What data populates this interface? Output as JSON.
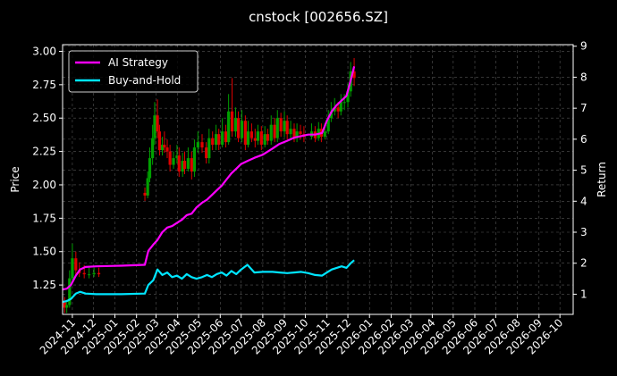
{
  "colors": {
    "background": "#000000",
    "frame": "#ffffff",
    "grid": "#555555",
    "candle_up": "#00a000",
    "candle_down": "#e00000",
    "ai_strategy": "#ff00ff",
    "buy_and_hold": "#00e5ff",
    "text": "#ffffff"
  },
  "chart_data": {
    "type": "line",
    "title": "cnstock [002656.SZ]",
    "ylabel": "Price",
    "y2label": "Return",
    "ylim": [
      1.03,
      3.05
    ],
    "y2lim": [
      0.35,
      9.05
    ],
    "xlim": [
      "2024-10-18",
      "2026-10-20"
    ],
    "yticks": [
      "1.25",
      "1.50",
      "1.75",
      "2.00",
      "2.25",
      "2.50",
      "2.75",
      "3.00"
    ],
    "y2ticks": [
      "1",
      "2",
      "3",
      "4",
      "5",
      "6",
      "7",
      "8",
      "9"
    ],
    "xticks": [
      "2024-11",
      "2024-12",
      "2025-01",
      "2025-02",
      "2025-03",
      "2025-04",
      "2025-05",
      "2025-06",
      "2025-07",
      "2025-08",
      "2025-09",
      "2025-10",
      "2025-11",
      "2025-12",
      "2026-01",
      "2026-02",
      "2026-03",
      "2026-04",
      "2026-05",
      "2026-06",
      "2026-07",
      "2026-08",
      "2026-09",
      "2026-10"
    ],
    "grid": true,
    "legend": {
      "position": "top-left"
    },
    "price_candles": {
      "name": "Price",
      "x": [
        "2024-10-21",
        "2024-10-24",
        "2024-10-28",
        "2024-11-01",
        "2024-11-06",
        "2024-11-11",
        "2024-11-18",
        "2024-11-25",
        "2024-12-02",
        "2024-12-09",
        "2025-02-13",
        "2025-02-17",
        "2025-02-20",
        "2025-02-24",
        "2025-02-27",
        "2025-03-03",
        "2025-03-06",
        "2025-03-10",
        "2025-03-13",
        "2025-03-17",
        "2025-03-21",
        "2025-03-26",
        "2025-03-31",
        "2025-04-03",
        "2025-04-08",
        "2025-04-11",
        "2025-04-16",
        "2025-04-21",
        "2025-04-25",
        "2025-04-30",
        "2025-05-06",
        "2025-05-12",
        "2025-05-16",
        "2025-05-21",
        "2025-05-26",
        "2025-05-30",
        "2025-06-04",
        "2025-06-09",
        "2025-06-13",
        "2025-06-18",
        "2025-06-23",
        "2025-06-27",
        "2025-07-02",
        "2025-07-07",
        "2025-07-11",
        "2025-07-16",
        "2025-07-21",
        "2025-07-25",
        "2025-07-30",
        "2025-08-04",
        "2025-08-08",
        "2025-08-13",
        "2025-08-18",
        "2025-08-22",
        "2025-08-27",
        "2025-09-01",
        "2025-09-05",
        "2025-09-10",
        "2025-09-15",
        "2025-09-19",
        "2025-09-24",
        "2025-09-29",
        "2025-10-10",
        "2025-10-15",
        "2025-10-20",
        "2025-10-24",
        "2025-10-29",
        "2025-11-03",
        "2025-11-07",
        "2025-11-12",
        "2025-11-17",
        "2025-11-21",
        "2025-11-26",
        "2025-12-01",
        "2025-12-05",
        "2025-12-10"
      ],
      "open": [
        1.12,
        1.08,
        1.1,
        1.3,
        1.45,
        1.36,
        1.34,
        1.33,
        1.33,
        1.34,
        1.94,
        1.92,
        2.05,
        2.2,
        2.35,
        2.52,
        2.4,
        2.26,
        2.3,
        2.28,
        2.25,
        2.15,
        2.2,
        2.22,
        2.1,
        2.18,
        2.12,
        2.2,
        2.1,
        2.28,
        2.32,
        2.28,
        2.2,
        2.35,
        2.3,
        2.38,
        2.3,
        2.4,
        2.32,
        2.55,
        2.4,
        2.5,
        2.35,
        2.48,
        2.3,
        2.4,
        2.35,
        2.33,
        2.4,
        2.3,
        2.38,
        2.33,
        2.45,
        2.35,
        2.5,
        2.4,
        2.48,
        2.38,
        2.42,
        2.35,
        2.4,
        2.38,
        2.36,
        2.4,
        2.35,
        2.42,
        2.36,
        2.4,
        2.5,
        2.55,
        2.58,
        2.55,
        2.62,
        2.62,
        2.7,
        2.85
      ],
      "close": [
        1.08,
        1.1,
        1.3,
        1.45,
        1.36,
        1.34,
        1.33,
        1.33,
        1.34,
        1.33,
        1.92,
        2.05,
        2.2,
        2.35,
        2.52,
        2.4,
        2.26,
        2.3,
        2.28,
        2.25,
        2.15,
        2.2,
        2.22,
        2.1,
        2.18,
        2.12,
        2.2,
        2.1,
        2.28,
        2.32,
        2.28,
        2.2,
        2.35,
        2.3,
        2.38,
        2.3,
        2.4,
        2.32,
        2.55,
        2.4,
        2.5,
        2.35,
        2.48,
        2.3,
        2.4,
        2.35,
        2.33,
        2.4,
        2.3,
        2.38,
        2.33,
        2.45,
        2.35,
        2.5,
        2.4,
        2.48,
        2.38,
        2.42,
        2.35,
        2.4,
        2.38,
        2.36,
        2.4,
        2.35,
        2.42,
        2.36,
        2.4,
        2.5,
        2.55,
        2.58,
        2.55,
        2.62,
        2.62,
        2.7,
        2.85,
        2.8
      ],
      "high": [
        1.16,
        1.14,
        1.36,
        1.56,
        1.5,
        1.42,
        1.4,
        1.38,
        1.38,
        1.38,
        1.98,
        2.1,
        2.28,
        2.45,
        2.62,
        2.64,
        2.45,
        2.36,
        2.4,
        2.34,
        2.3,
        2.25,
        2.3,
        2.28,
        2.24,
        2.25,
        2.28,
        2.25,
        2.34,
        2.4,
        2.38,
        2.32,
        2.42,
        2.4,
        2.45,
        2.42,
        2.5,
        2.45,
        2.68,
        2.8,
        2.58,
        2.55,
        2.56,
        2.52,
        2.48,
        2.46,
        2.42,
        2.45,
        2.44,
        2.44,
        2.42,
        2.52,
        2.5,
        2.56,
        2.54,
        2.55,
        2.52,
        2.48,
        2.46,
        2.46,
        2.45,
        2.44,
        2.46,
        2.44,
        2.47,
        2.46,
        2.46,
        2.56,
        2.62,
        2.65,
        2.62,
        2.68,
        2.68,
        2.76,
        2.92,
        2.95
      ],
      "low": [
        1.04,
        1.04,
        1.08,
        1.28,
        1.32,
        1.31,
        1.3,
        1.3,
        1.31,
        1.31,
        1.88,
        1.9,
        2.02,
        2.15,
        2.3,
        2.35,
        2.22,
        2.22,
        2.24,
        2.2,
        2.1,
        2.12,
        2.16,
        2.06,
        2.06,
        2.08,
        2.1,
        2.04,
        2.06,
        2.24,
        2.24,
        2.16,
        2.16,
        2.26,
        2.26,
        2.26,
        2.28,
        2.28,
        2.3,
        2.36,
        2.36,
        2.32,
        2.32,
        2.26,
        2.28,
        2.32,
        2.28,
        2.3,
        2.26,
        2.28,
        2.3,
        2.3,
        2.32,
        2.32,
        2.36,
        2.36,
        2.34,
        2.34,
        2.32,
        2.32,
        2.34,
        2.32,
        2.34,
        2.32,
        2.33,
        2.32,
        2.34,
        2.38,
        2.47,
        2.52,
        2.5,
        2.52,
        2.56,
        2.58,
        2.66,
        2.74
      ]
    },
    "series": [
      {
        "name": "AI Strategy",
        "axis": "right",
        "x": [
          "2024-10-18",
          "2024-10-24",
          "2024-10-30",
          "2024-11-06",
          "2024-11-12",
          "2024-11-20",
          "2024-12-05",
          "2025-01-10",
          "2025-02-13",
          "2025-02-18",
          "2025-02-25",
          "2025-03-03",
          "2025-03-10",
          "2025-03-17",
          "2025-03-24",
          "2025-03-31",
          "2025-04-07",
          "2025-04-14",
          "2025-04-21",
          "2025-04-28",
          "2025-05-06",
          "2025-05-13",
          "2025-05-20",
          "2025-05-27",
          "2025-06-03",
          "2025-06-10",
          "2025-06-17",
          "2025-06-24",
          "2025-07-01",
          "2025-07-10",
          "2025-07-20",
          "2025-08-01",
          "2025-08-15",
          "2025-08-25",
          "2025-09-05",
          "2025-09-15",
          "2025-09-25",
          "2025-10-05",
          "2025-10-15",
          "2025-10-25",
          "2025-11-01",
          "2025-11-08",
          "2025-11-15",
          "2025-11-22",
          "2025-11-29",
          "2025-12-05",
          "2025-12-10"
        ],
        "values": [
          1.15,
          1.18,
          1.3,
          1.6,
          1.8,
          1.88,
          1.9,
          1.92,
          1.95,
          2.4,
          2.6,
          2.75,
          3.0,
          3.15,
          3.2,
          3.3,
          3.4,
          3.55,
          3.6,
          3.8,
          3.95,
          4.05,
          4.2,
          4.35,
          4.5,
          4.7,
          4.9,
          5.05,
          5.2,
          5.3,
          5.4,
          5.5,
          5.7,
          5.85,
          5.95,
          6.05,
          6.1,
          6.15,
          6.15,
          6.2,
          6.6,
          6.9,
          7.1,
          7.25,
          7.4,
          7.9,
          8.35
        ]
      },
      {
        "name": "Buy-and-Hold",
        "axis": "right",
        "x": [
          "2024-10-18",
          "2024-10-24",
          "2024-10-30",
          "2024-11-06",
          "2024-11-12",
          "2024-11-20",
          "2024-12-05",
          "2025-01-10",
          "2025-02-13",
          "2025-02-18",
          "2025-02-25",
          "2025-03-03",
          "2025-03-10",
          "2025-03-17",
          "2025-03-24",
          "2025-03-31",
          "2025-04-07",
          "2025-04-14",
          "2025-04-21",
          "2025-04-28",
          "2025-05-06",
          "2025-05-13",
          "2025-05-20",
          "2025-05-27",
          "2025-06-03",
          "2025-06-10",
          "2025-06-17",
          "2025-06-24",
          "2025-07-01",
          "2025-07-10",
          "2025-07-20",
          "2025-08-01",
          "2025-08-15",
          "2025-08-25",
          "2025-09-05",
          "2025-09-15",
          "2025-09-25",
          "2025-10-05",
          "2025-10-15",
          "2025-10-25",
          "2025-11-01",
          "2025-11-08",
          "2025-11-15",
          "2025-11-22",
          "2025-11-29",
          "2025-12-05",
          "2025-12-10"
        ],
        "values": [
          0.75,
          0.78,
          0.85,
          1.02,
          1.08,
          1.02,
          1.0,
          1.0,
          1.02,
          1.3,
          1.45,
          1.8,
          1.62,
          1.7,
          1.55,
          1.6,
          1.5,
          1.65,
          1.55,
          1.5,
          1.55,
          1.62,
          1.55,
          1.65,
          1.7,
          1.6,
          1.75,
          1.65,
          1.8,
          1.95,
          1.7,
          1.72,
          1.72,
          1.7,
          1.68,
          1.7,
          1.72,
          1.68,
          1.62,
          1.6,
          1.7,
          1.8,
          1.85,
          1.9,
          1.85,
          2.0,
          2.1
        ]
      }
    ]
  }
}
